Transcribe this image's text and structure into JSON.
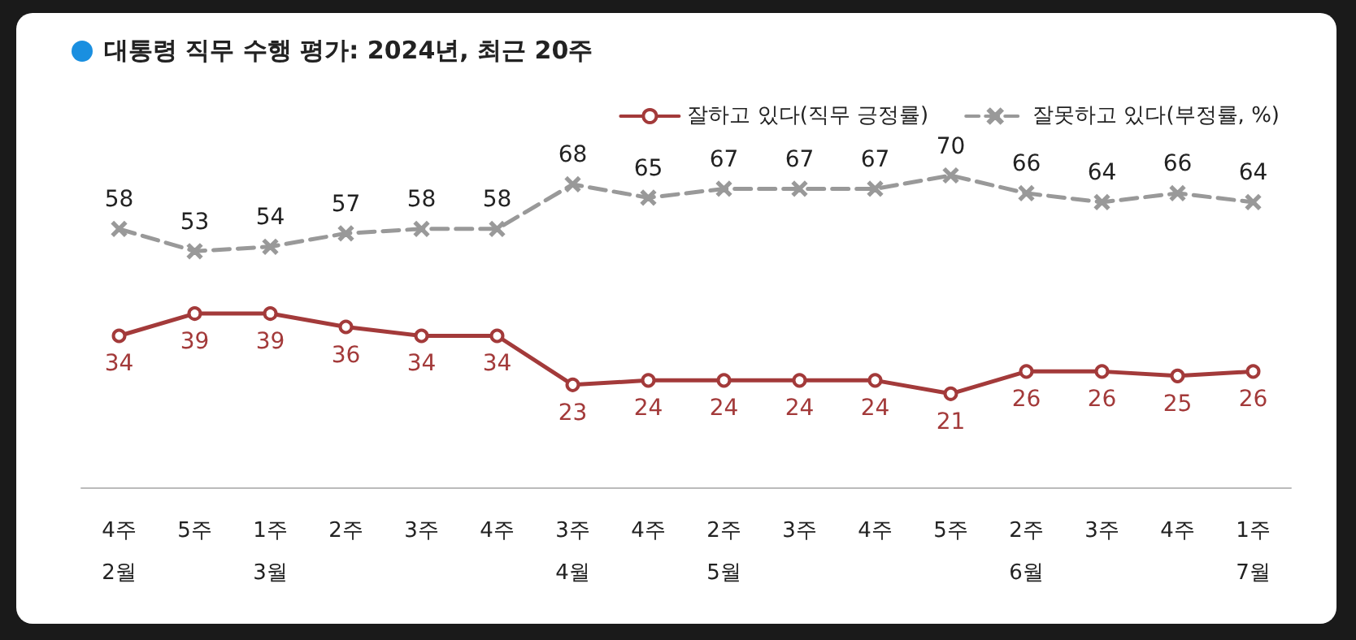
{
  "chart_data": {
    "type": "line",
    "title": "대통령 직무 수행 평가: 2024년, 최근 20주",
    "categories": [
      "4주\n2월",
      "5주",
      "1주\n3월",
      "2주",
      "3주",
      "4주",
      "3주\n4월",
      "4주",
      "2주\n5월",
      "3주",
      "4주",
      "5주",
      "2주\n6월",
      "3주",
      "4주",
      "1주\n7월"
    ],
    "series": [
      {
        "name": "잘하고 있다(직무 긍정률)",
        "color": "#a33a3a",
        "marker": "circle",
        "line_style": "solid",
        "values": [
          34,
          39,
          39,
          36,
          34,
          34,
          23,
          24,
          24,
          24,
          24,
          21,
          26,
          26,
          25,
          26
        ]
      },
      {
        "name": "잘못하고 있다(부정률, %)",
        "color": "#999999",
        "marker": "cross",
        "line_style": "dashed",
        "values": [
          58,
          53,
          54,
          57,
          58,
          58,
          68,
          65,
          67,
          67,
          67,
          70,
          66,
          64,
          66,
          64
        ]
      }
    ],
    "data_labels": true,
    "legend": "top right",
    "grid": false
  }
}
